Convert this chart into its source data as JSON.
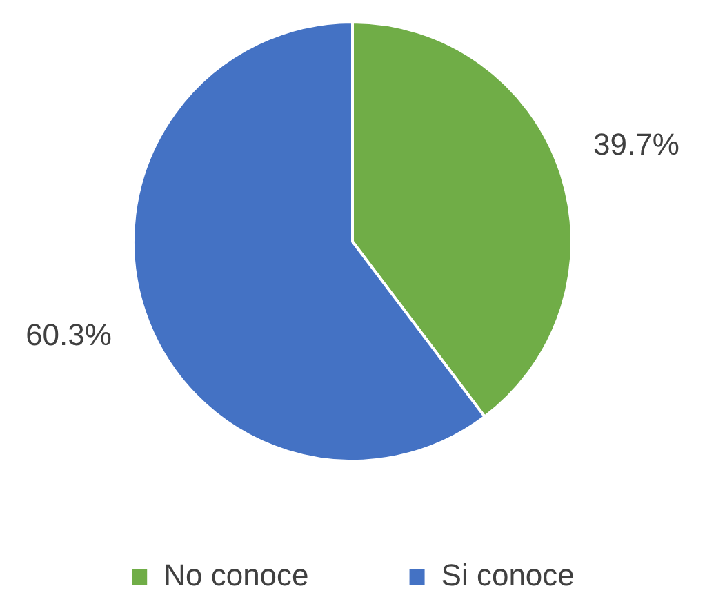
{
  "chart_data": {
    "type": "pie",
    "categories": [
      "No conoce",
      "Si conoce"
    ],
    "values": [
      39.7,
      60.3
    ],
    "colors": [
      "#70ad47",
      "#4472c4"
    ],
    "value_labels": [
      "39.7%",
      "60.3%"
    ],
    "legend": "bottom"
  }
}
